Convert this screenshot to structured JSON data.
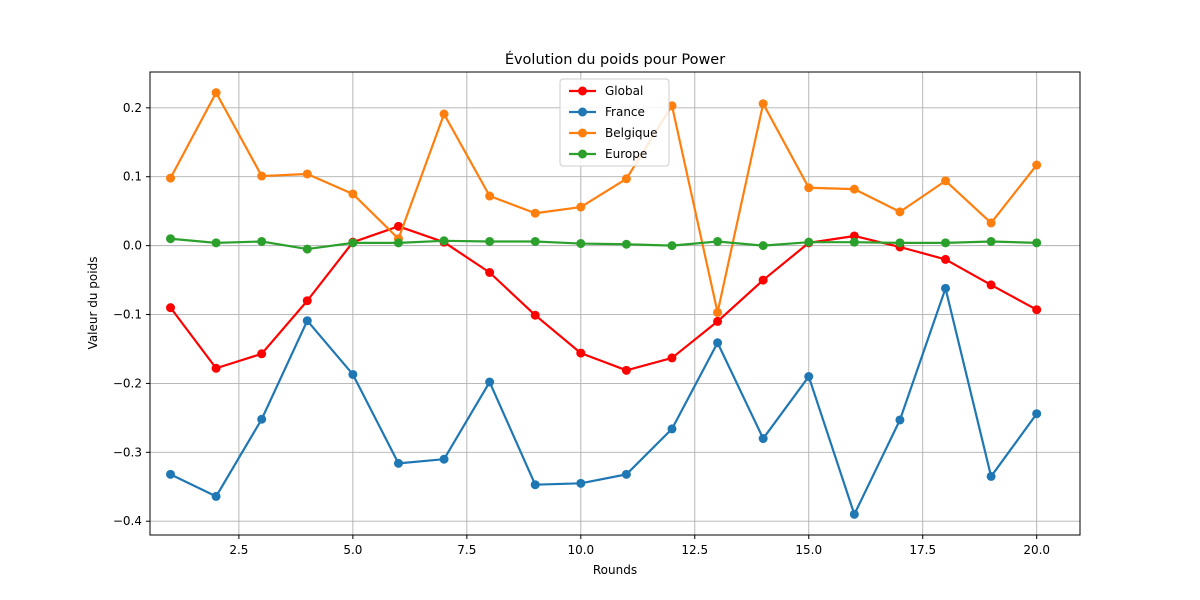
{
  "chart_data": {
    "type": "line",
    "title": "Évolution du poids pour Power",
    "xlabel": "Rounds",
    "ylabel": "Valeur du poids",
    "xlim": [
      0.55,
      20.95
    ],
    "ylim": [
      -0.42,
      0.252
    ],
    "xticks": [
      2.5,
      5.0,
      7.5,
      10.0,
      12.5,
      15.0,
      17.5,
      20.0
    ],
    "xtick_labels": [
      "2.5",
      "5.0",
      "7.5",
      "10.0",
      "12.5",
      "15.0",
      "17.5",
      "20.0"
    ],
    "yticks": [
      -0.4,
      -0.3,
      -0.2,
      -0.1,
      0.0,
      0.1,
      0.2
    ],
    "ytick_labels": [
      "−0.4",
      "−0.3",
      "−0.2",
      "−0.1",
      "0.0",
      "0.1",
      "0.2"
    ],
    "grid": true,
    "legend_position": "upper-center",
    "x": [
      1,
      2,
      3,
      4,
      5,
      6,
      7,
      8,
      9,
      10,
      11,
      12,
      13,
      14,
      15,
      16,
      17,
      18,
      19,
      20
    ],
    "series": [
      {
        "name": "Global",
        "color": "#ff0000",
        "values": [
          -0.09,
          -0.178,
          -0.157,
          -0.08,
          0.005,
          0.028,
          0.005,
          -0.039,
          -0.101,
          -0.156,
          -0.181,
          -0.163,
          -0.11,
          -0.05,
          0.004,
          0.014,
          -0.002,
          -0.02,
          -0.057,
          -0.093
        ]
      },
      {
        "name": "France",
        "color": "#1f77b4",
        "values": [
          -0.332,
          -0.364,
          -0.252,
          -0.109,
          -0.187,
          -0.316,
          -0.31,
          -0.198,
          -0.347,
          -0.345,
          -0.332,
          -0.266,
          -0.141,
          -0.28,
          -0.19,
          -0.39,
          -0.253,
          -0.062,
          -0.335,
          -0.244
        ]
      },
      {
        "name": "Belgique",
        "color": "#ff7f0e",
        "values": [
          0.098,
          0.222,
          0.101,
          0.104,
          0.075,
          0.01,
          0.191,
          0.072,
          0.047,
          0.056,
          0.097,
          0.203,
          -0.097,
          0.206,
          0.084,
          0.082,
          0.049,
          0.094,
          0.033,
          0.117
        ]
      },
      {
        "name": "Europe",
        "color": "#2ca02c",
        "values": [
          0.01,
          0.004,
          0.006,
          -0.005,
          0.004,
          0.004,
          0.007,
          0.006,
          0.006,
          0.003,
          0.002,
          0.0,
          0.006,
          0.0,
          0.005,
          0.005,
          0.004,
          0.004,
          0.006,
          0.004
        ]
      }
    ]
  }
}
